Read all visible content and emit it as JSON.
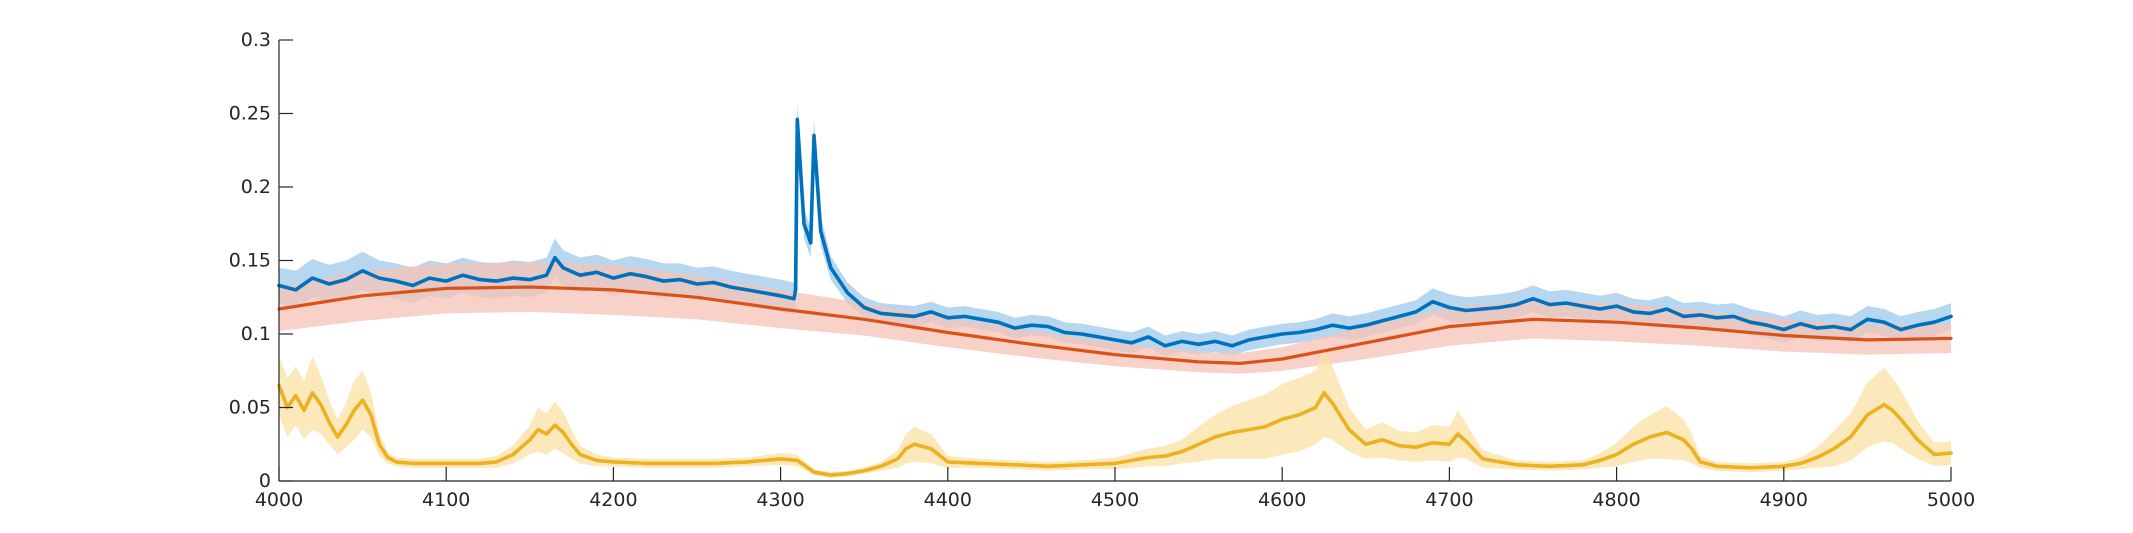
{
  "chart_data": {
    "type": "line",
    "title": "",
    "xlabel": "",
    "ylabel": "",
    "xlim": [
      4000,
      5000
    ],
    "ylim": [
      0,
      0.3
    ],
    "xticks": [
      4000,
      4100,
      4200,
      4300,
      4400,
      4500,
      4600,
      4700,
      4800,
      4900,
      5000
    ],
    "yticks": [
      0,
      0.05,
      0.1,
      0.15,
      0.2,
      0.25,
      0.3
    ],
    "xtick_labels": [
      "4000",
      "4100",
      "4200",
      "4300",
      "4400",
      "4500",
      "4600",
      "4700",
      "4800",
      "4900",
      "5000"
    ],
    "ytick_labels": [
      "0",
      "0.05",
      "0.1",
      "0.15",
      "0.2",
      "0.25",
      "0.3"
    ],
    "grid": false,
    "legend": "none",
    "series": [
      {
        "color": "#0072BD",
        "band_color": "#9ECAE9",
        "x": [
          4000,
          4010,
          4020,
          4030,
          4040,
          4050,
          4060,
          4070,
          4080,
          4090,
          4100,
          4110,
          4120,
          4130,
          4140,
          4150,
          4160,
          4165,
          4170,
          4180,
          4190,
          4200,
          4210,
          4220,
          4230,
          4240,
          4250,
          4260,
          4270,
          4280,
          4290,
          4300,
          4308,
          4309,
          4310,
          4314,
          4318,
          4320,
          4324,
          4330,
          4340,
          4350,
          4360,
          4370,
          4380,
          4390,
          4400,
          4410,
          4420,
          4430,
          4440,
          4450,
          4460,
          4470,
          4480,
          4490,
          4500,
          4510,
          4520,
          4530,
          4540,
          4550,
          4560,
          4570,
          4580,
          4590,
          4600,
          4610,
          4620,
          4630,
          4640,
          4650,
          4660,
          4670,
          4680,
          4690,
          4700,
          4710,
          4720,
          4730,
          4740,
          4750,
          4760,
          4770,
          4780,
          4790,
          4800,
          4810,
          4820,
          4830,
          4840,
          4850,
          4860,
          4870,
          4880,
          4890,
          4900,
          4910,
          4920,
          4930,
          4940,
          4950,
          4960,
          4970,
          4980,
          4990,
          5000
        ],
        "y": [
          0.133,
          0.13,
          0.138,
          0.134,
          0.137,
          0.143,
          0.138,
          0.136,
          0.133,
          0.138,
          0.136,
          0.14,
          0.137,
          0.136,
          0.138,
          0.137,
          0.14,
          0.152,
          0.145,
          0.14,
          0.142,
          0.138,
          0.141,
          0.139,
          0.136,
          0.137,
          0.134,
          0.135,
          0.132,
          0.13,
          0.128,
          0.126,
          0.124,
          0.13,
          0.246,
          0.175,
          0.162,
          0.235,
          0.17,
          0.145,
          0.128,
          0.118,
          0.114,
          0.113,
          0.112,
          0.115,
          0.111,
          0.112,
          0.11,
          0.108,
          0.104,
          0.106,
          0.105,
          0.101,
          0.1,
          0.098,
          0.096,
          0.094,
          0.098,
          0.092,
          0.095,
          0.093,
          0.095,
          0.092,
          0.096,
          0.098,
          0.1,
          0.101,
          0.103,
          0.106,
          0.104,
          0.106,
          0.109,
          0.112,
          0.115,
          0.122,
          0.118,
          0.116,
          0.117,
          0.118,
          0.12,
          0.124,
          0.12,
          0.121,
          0.119,
          0.117,
          0.119,
          0.115,
          0.114,
          0.117,
          0.112,
          0.113,
          0.111,
          0.112,
          0.108,
          0.106,
          0.103,
          0.107,
          0.104,
          0.105,
          0.103,
          0.11,
          0.108,
          0.103,
          0.106,
          0.108,
          0.112
        ],
        "band": [
          0.012,
          0.013,
          0.013,
          0.013,
          0.013,
          0.013,
          0.012,
          0.012,
          0.012,
          0.012,
          0.012,
          0.012,
          0.012,
          0.012,
          0.012,
          0.012,
          0.012,
          0.013,
          0.012,
          0.012,
          0.012,
          0.012,
          0.012,
          0.012,
          0.012,
          0.011,
          0.011,
          0.011,
          0.011,
          0.011,
          0.011,
          0.011,
          0.011,
          0.011,
          0.012,
          0.01,
          0.01,
          0.011,
          0.01,
          0.008,
          0.007,
          0.007,
          0.007,
          0.007,
          0.007,
          0.007,
          0.007,
          0.007,
          0.007,
          0.007,
          0.007,
          0.007,
          0.007,
          0.007,
          0.007,
          0.007,
          0.007,
          0.007,
          0.007,
          0.007,
          0.007,
          0.007,
          0.007,
          0.007,
          0.007,
          0.007,
          0.007,
          0.007,
          0.007,
          0.008,
          0.008,
          0.008,
          0.008,
          0.008,
          0.008,
          0.009,
          0.009,
          0.009,
          0.009,
          0.009,
          0.009,
          0.009,
          0.009,
          0.009,
          0.009,
          0.009,
          0.009,
          0.009,
          0.009,
          0.009,
          0.009,
          0.009,
          0.009,
          0.009,
          0.009,
          0.009,
          0.009,
          0.009,
          0.009,
          0.009,
          0.009,
          0.009,
          0.009,
          0.009,
          0.009,
          0.009,
          0.009
        ]
      },
      {
        "color": "#D95319",
        "band_color": "#F6C3B5",
        "x": [
          4000,
          4050,
          4100,
          4150,
          4200,
          4250,
          4300,
          4350,
          4400,
          4450,
          4500,
          4550,
          4575,
          4600,
          4650,
          4700,
          4750,
          4800,
          4850,
          4900,
          4950,
          5000
        ],
        "y": [
          0.117,
          0.126,
          0.131,
          0.132,
          0.13,
          0.125,
          0.117,
          0.11,
          0.101,
          0.093,
          0.086,
          0.081,
          0.08,
          0.083,
          0.094,
          0.105,
          0.11,
          0.108,
          0.104,
          0.099,
          0.096,
          0.097
        ],
        "band": [
          0.015,
          0.017,
          0.017,
          0.017,
          0.017,
          0.015,
          0.013,
          0.011,
          0.01,
          0.009,
          0.008,
          0.007,
          0.007,
          0.008,
          0.011,
          0.013,
          0.013,
          0.013,
          0.012,
          0.011,
          0.01,
          0.01
        ]
      },
      {
        "color": "#EDB120",
        "band_color": "#F9E2A6",
        "x": [
          4000,
          4005,
          4010,
          4015,
          4020,
          4025,
          4030,
          4035,
          4040,
          4045,
          4050,
          4055,
          4060,
          4065,
          4070,
          4080,
          4090,
          4100,
          4110,
          4120,
          4130,
          4140,
          4150,
          4155,
          4160,
          4165,
          4170,
          4175,
          4180,
          4190,
          4200,
          4220,
          4240,
          4260,
          4280,
          4300,
          4310,
          4320,
          4330,
          4340,
          4350,
          4360,
          4370,
          4375,
          4380,
          4390,
          4400,
          4420,
          4440,
          4460,
          4480,
          4500,
          4510,
          4520,
          4530,
          4540,
          4550,
          4560,
          4570,
          4580,
          4590,
          4600,
          4610,
          4620,
          4625,
          4630,
          4640,
          4650,
          4660,
          4670,
          4680,
          4690,
          4700,
          4705,
          4710,
          4720,
          4740,
          4760,
          4780,
          4790,
          4800,
          4810,
          4820,
          4830,
          4840,
          4845,
          4850,
          4860,
          4880,
          4900,
          4910,
          4920,
          4930,
          4940,
          4950,
          4960,
          4965,
          4970,
          4980,
          4990,
          5000
        ],
        "y": [
          0.065,
          0.05,
          0.058,
          0.048,
          0.06,
          0.052,
          0.04,
          0.03,
          0.038,
          0.048,
          0.055,
          0.045,
          0.025,
          0.016,
          0.013,
          0.012,
          0.012,
          0.012,
          0.012,
          0.012,
          0.013,
          0.018,
          0.028,
          0.035,
          0.032,
          0.038,
          0.033,
          0.025,
          0.018,
          0.014,
          0.013,
          0.012,
          0.012,
          0.012,
          0.013,
          0.015,
          0.014,
          0.006,
          0.004,
          0.005,
          0.007,
          0.01,
          0.015,
          0.022,
          0.025,
          0.022,
          0.013,
          0.012,
          0.011,
          0.01,
          0.011,
          0.012,
          0.014,
          0.016,
          0.017,
          0.02,
          0.025,
          0.03,
          0.033,
          0.035,
          0.037,
          0.042,
          0.045,
          0.05,
          0.06,
          0.053,
          0.035,
          0.025,
          0.028,
          0.024,
          0.023,
          0.026,
          0.025,
          0.032,
          0.027,
          0.015,
          0.011,
          0.01,
          0.011,
          0.014,
          0.018,
          0.025,
          0.03,
          0.033,
          0.028,
          0.022,
          0.013,
          0.01,
          0.009,
          0.01,
          0.012,
          0.016,
          0.022,
          0.03,
          0.045,
          0.052,
          0.048,
          0.042,
          0.028,
          0.018,
          0.019
        ],
        "band": [
          0.02,
          0.02,
          0.02,
          0.02,
          0.025,
          0.02,
          0.015,
          0.012,
          0.015,
          0.02,
          0.02,
          0.015,
          0.008,
          0.004,
          0.003,
          0.003,
          0.003,
          0.003,
          0.003,
          0.003,
          0.004,
          0.006,
          0.01,
          0.015,
          0.014,
          0.016,
          0.014,
          0.01,
          0.006,
          0.004,
          0.003,
          0.003,
          0.003,
          0.003,
          0.003,
          0.004,
          0.004,
          0.002,
          0.002,
          0.002,
          0.002,
          0.003,
          0.006,
          0.01,
          0.012,
          0.01,
          0.004,
          0.003,
          0.003,
          0.003,
          0.003,
          0.004,
          0.005,
          0.006,
          0.007,
          0.008,
          0.012,
          0.015,
          0.018,
          0.02,
          0.022,
          0.024,
          0.025,
          0.025,
          0.03,
          0.025,
          0.015,
          0.01,
          0.012,
          0.01,
          0.01,
          0.012,
          0.012,
          0.016,
          0.012,
          0.006,
          0.003,
          0.003,
          0.003,
          0.005,
          0.008,
          0.012,
          0.015,
          0.018,
          0.014,
          0.01,
          0.004,
          0.003,
          0.003,
          0.003,
          0.004,
          0.007,
          0.012,
          0.016,
          0.022,
          0.025,
          0.022,
          0.02,
          0.013,
          0.008,
          0.008
        ]
      }
    ]
  }
}
